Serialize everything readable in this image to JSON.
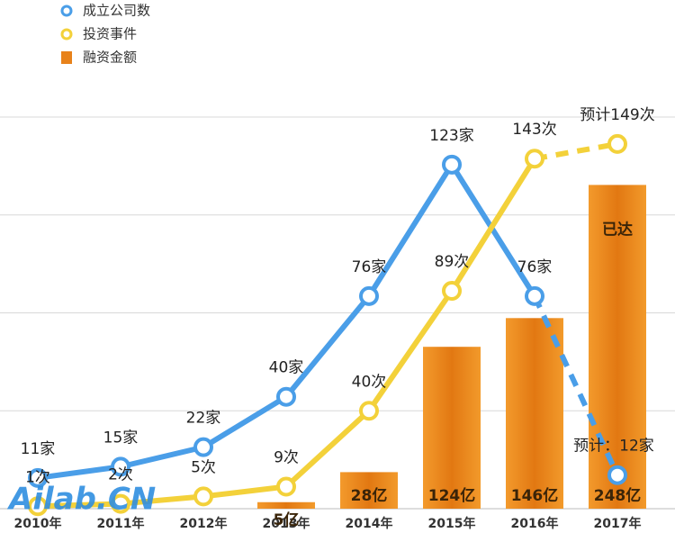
{
  "chart_data": {
    "type": "combo",
    "categories": [
      "2010年",
      "2011年",
      "2012年",
      "2013年",
      "2014年",
      "2015年",
      "2016年",
      "2017年"
    ],
    "series": [
      {
        "name": "成立公司数",
        "type": "line",
        "color": "#4a9ee8",
        "ylim": [
          0,
          140
        ],
        "values": [
          11,
          15,
          22,
          40,
          76,
          123,
          76,
          12
        ],
        "value_labels": [
          "11家",
          "15家",
          "22家",
          "40家",
          "76家",
          "123家",
          "76家",
          "预计：12家"
        ],
        "dashed_from": 6
      },
      {
        "name": "投资事件",
        "type": "line",
        "color": "#f3d13a",
        "ylim": [
          0,
          160
        ],
        "values": [
          1,
          2,
          5,
          9,
          40,
          89,
          143,
          149
        ],
        "value_labels": [
          "1次",
          "2次",
          "5次",
          "9次",
          "40次",
          "89次",
          "143次",
          "预计149次"
        ],
        "dashed_from": 6
      },
      {
        "name": "融资金额",
        "type": "bar",
        "color": "#e8821a",
        "ylim": [
          0,
          300
        ],
        "values": [
          null,
          null,
          null,
          5,
          28,
          124,
          146,
          248
        ],
        "value_labels": [
          null,
          null,
          null,
          "5亿",
          "28亿",
          "124亿",
          "146亿",
          "248亿"
        ]
      }
    ],
    "annotations": [
      {
        "text": "已达",
        "category": 7
      }
    ],
    "yticks": [
      75,
      150,
      225,
      300
    ],
    "grid": true,
    "legend": "top-left",
    "watermark": "Ailab.CN"
  }
}
